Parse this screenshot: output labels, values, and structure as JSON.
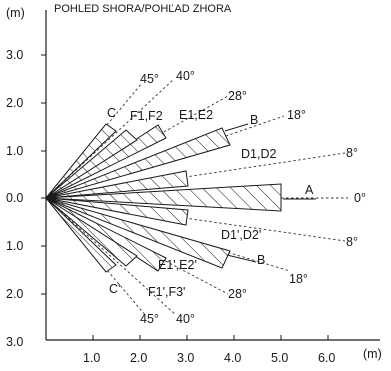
{
  "title": "POHLED SHORA/POHĽAD ZHORA",
  "y_axis_unit": "(m)",
  "x_axis_unit": "(m)",
  "y_ticks": [
    "3.0",
    "2.0",
    "1.0",
    "0.0",
    "1.0",
    "2.0",
    "3.0"
  ],
  "x_ticks": [
    "1.0",
    "2.0",
    "3.0",
    "4.0",
    "5.0",
    "6.0"
  ],
  "zones": [
    {
      "id": "0-center",
      "angle_deg": 0,
      "length_m": 5.0,
      "label": "A",
      "angle_label": "0°"
    },
    {
      "id": "8-up",
      "angle_deg": 8,
      "length_m": 2.9,
      "label": "D1,D2",
      "angle_label": "8°"
    },
    {
      "id": "8-down",
      "angle_deg": -8,
      "length_m": 2.9,
      "label": "D1',D2'",
      "angle_label": "8°"
    },
    {
      "id": "18-up",
      "angle_deg": 18,
      "length_m": 3.9,
      "label": "B",
      "angle_label": "18°"
    },
    {
      "id": "18-down",
      "angle_deg": -18,
      "length_m": 3.9,
      "label": "B",
      "angle_label": "18°"
    },
    {
      "id": "28-up",
      "angle_deg": 28,
      "length_m": 2.4,
      "label": "E1,E2",
      "angle_label": "28°"
    },
    {
      "id": "28-down",
      "angle_deg": -28,
      "length_m": 2.4,
      "label": "E1',E2'",
      "angle_label": "28°"
    },
    {
      "id": "40-up",
      "angle_deg": 40,
      "length_m": 2.0,
      "label": "F1,F2",
      "angle_label": "40°"
    },
    {
      "id": "40-down",
      "angle_deg": -40,
      "length_m": 2.0,
      "label": "F1',F3'",
      "angle_label": "40°"
    },
    {
      "id": "45-up",
      "angle_deg": 45,
      "length_m": 2.0,
      "label": "C",
      "angle_label": "45°"
    },
    {
      "id": "45-down",
      "angle_deg": -45,
      "length_m": 2.0,
      "label": "C'",
      "angle_label": "45°"
    }
  ]
}
